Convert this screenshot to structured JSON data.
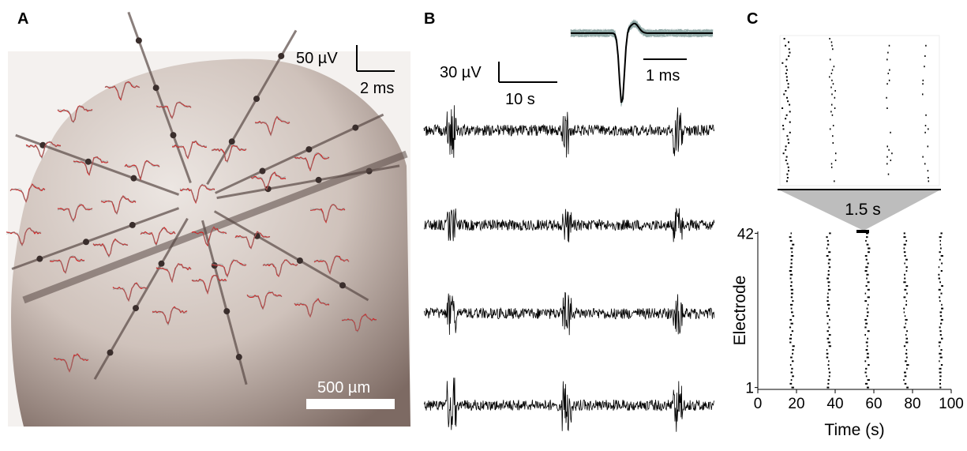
{
  "panels": {
    "a": {
      "label": "A",
      "scale_amplitude": "50 µV",
      "scale_time": "2 ms",
      "scale_length": "500 µm"
    },
    "b": {
      "label": "B",
      "scale_amplitude": "30 µV",
      "scale_time": "10 s",
      "inset_scale_time": "1 ms"
    },
    "c": {
      "label": "C",
      "zoom_label": "1.5 s"
    }
  },
  "chart_data": {
    "type": "raster",
    "x_label": "Time (s)",
    "y_label": "Electrode",
    "xlim": [
      0,
      100
    ],
    "xticks": [
      0,
      20,
      40,
      60,
      80,
      100
    ],
    "ylim": [
      0.5,
      42.5
    ],
    "yticks": [
      1,
      42
    ],
    "burst_times": [
      17,
      36,
      56,
      76,
      94
    ]
  }
}
